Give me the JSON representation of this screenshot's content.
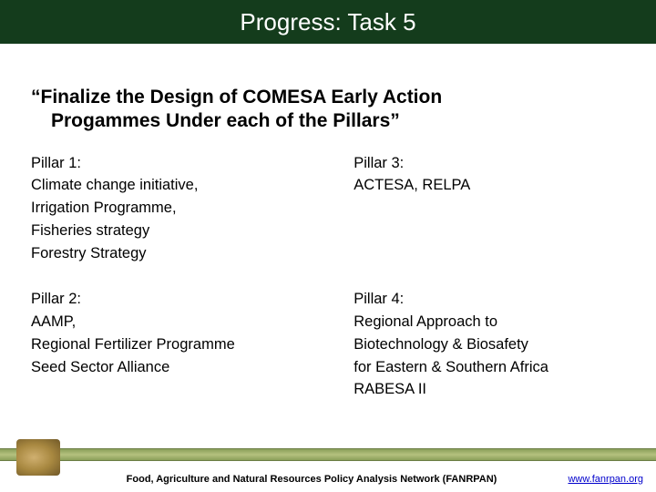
{
  "title": "Progress: Task 5",
  "heading_line1": "“Finalize the Design of COMESA Early Action",
  "heading_line2": "Progammes Under each of the Pillars”",
  "pillars": [
    {
      "title": "Pillar 1:",
      "lines": [
        "Climate change initiative,",
        "Irrigation Programme,",
        "Fisheries strategy",
        "Forestry Strategy"
      ]
    },
    {
      "title": "Pillar 3:",
      "lines": [
        "ACTESA, RELPA"
      ]
    },
    {
      "title": "Pillar 2:",
      "lines": [
        "AAMP,",
        "Regional Fertilizer Programme",
        "Seed Sector Alliance"
      ]
    },
    {
      "title": "Pillar 4:",
      "lines": [
        "Regional Approach to",
        "Biotechnology & Biosafety",
        "for Eastern & Southern Africa",
        "RABESA II"
      ]
    }
  ],
  "footer_text": "Food, Agriculture and Natural Resources Policy Analysis Network (FANRPAN)",
  "footer_link": "www.fanrpan.org",
  "colors": {
    "title_bg": "#143c1c",
    "title_fg": "#ffffff",
    "body_bg": "#ffffff",
    "text": "#000000",
    "link": "#0000cc"
  }
}
